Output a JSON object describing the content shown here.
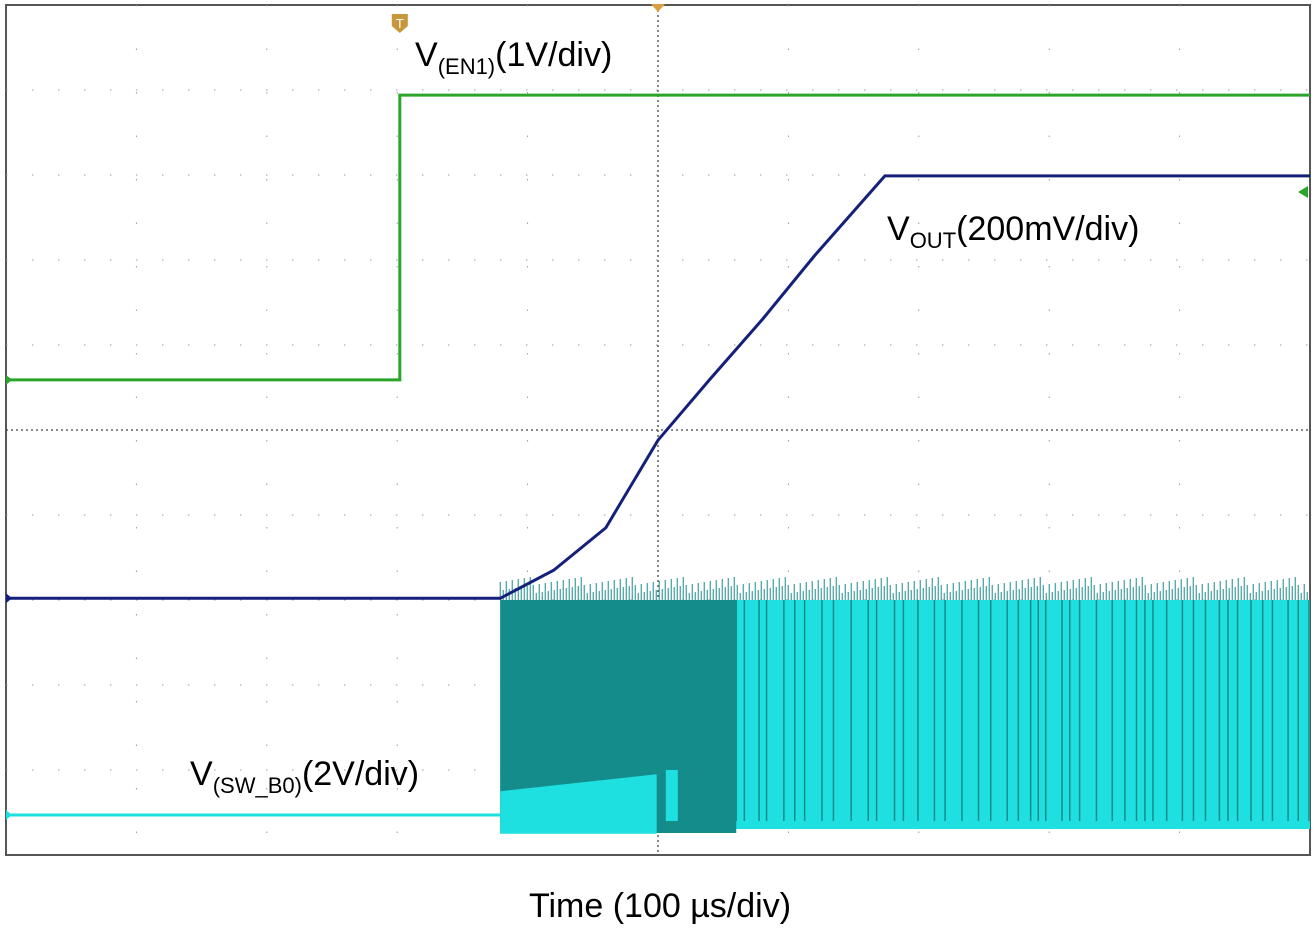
{
  "chart_data": {
    "type": "line",
    "title": "",
    "xlabel": "Time (100 µs/div)",
    "ylabel": "",
    "x_unit": "µs",
    "xlim": [
      0,
      1000
    ],
    "ylim_div": [
      0,
      10
    ],
    "grid": true,
    "x_divisions": 10,
    "y_divisions": 10,
    "series": [
      {
        "name": "V(EN1)(1V/div)",
        "label_main": "V",
        "label_sub": "(EN1)",
        "label_tail": "(1V/div)",
        "color": "#2aa52a",
        "x": [
          0,
          302,
          302,
          1000
        ],
        "y": [
          5.59,
          5.59,
          8.94,
          8.94
        ]
      },
      {
        "name": "VOUT(200mV/div)",
        "label_main": "V",
        "label_sub": "OUT",
        "label_tail": "(200mV/div)",
        "color": "#14207a",
        "x": [
          0,
          379,
          420,
          460,
          500,
          540,
          580,
          620,
          674,
          1000
        ],
        "y": [
          3.02,
          3.02,
          3.35,
          3.85,
          4.88,
          5.6,
          6.3,
          7.05,
          7.99,
          7.99
        ]
      },
      {
        "name": "V(SW_B0)(2V/div)",
        "label_main": "V",
        "label_sub": "(SW_B0)",
        "label_tail": "(2V/div)",
        "color": "#1ee0e0",
        "x": [
          0,
          379
        ],
        "y": [
          0.47,
          0.47
        ],
        "switching_from": 379,
        "switching_low": 0.4,
        "switching_high": 3.0
      }
    ],
    "markers": [
      {
        "label": "T",
        "x": 302,
        "color": "#c8963c"
      },
      {
        "x": 500,
        "color": "#d9a040"
      }
    ]
  }
}
